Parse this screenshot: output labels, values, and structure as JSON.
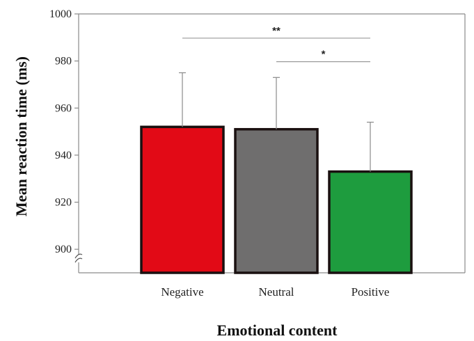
{
  "chart_data": {
    "type": "bar",
    "title": "",
    "xlabel": "Emotional content",
    "ylabel": "Mean reaction time (ms)",
    "ylim": [
      890,
      1000
    ],
    "yticks": [
      900,
      920,
      940,
      960,
      980,
      1000
    ],
    "axis_break": true,
    "grid": false,
    "categories": [
      "Negative",
      "Neutral",
      "Positive"
    ],
    "values": [
      952,
      951,
      933
    ],
    "error_upper": [
      975,
      973,
      954
    ],
    "colors": [
      "#e20a16",
      "#6f6e6e",
      "#1e9c3e"
    ],
    "edge_color": "#1a1010",
    "significance": [
      {
        "from": "Negative",
        "to": "Positive",
        "label": "**",
        "y": 990
      },
      {
        "from": "Neutral",
        "to": "Positive",
        "label": "*",
        "y": 980
      }
    ]
  }
}
